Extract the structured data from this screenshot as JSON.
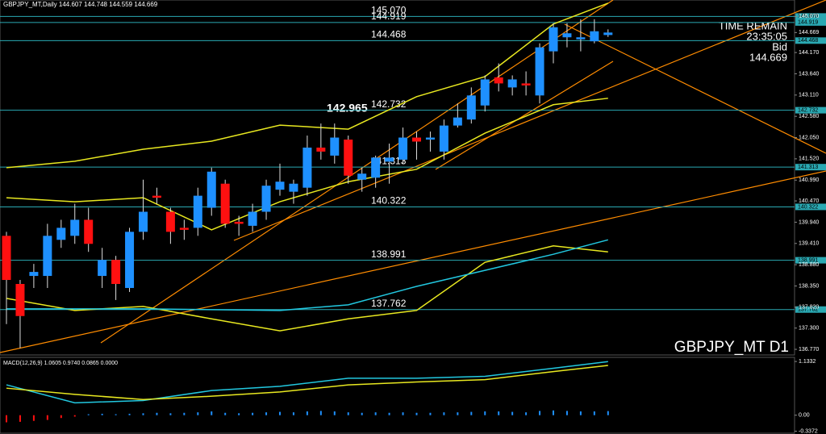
{
  "chart_data": [
    {
      "type": "candlestick",
      "symbol": "GBPJPY_MT,Daily 144.607 144.748 144.559 144.669",
      "timeframe_label": "GBPJPY_MT D1",
      "time_remain_label": "TIME REMAIN",
      "time_remain": "23:35:05",
      "bid_label": "Bid",
      "bid": "144.669",
      "annotation": "142.965",
      "up_color": "#1e90ff",
      "down_color": "#ff1010",
      "wick_color": "#dddddd",
      "level_color": "#2aa9b3",
      "ylim": [
        136.63,
        145.48
      ],
      "yticks": [
        {
          "value": 145.07,
          "label": "145.070"
        },
        {
          "value": 144.669,
          "label": "144.669"
        },
        {
          "value": 144.17,
          "label": "144.170"
        },
        {
          "value": 143.64,
          "label": "143.640"
        },
        {
          "value": 143.11,
          "label": "143.110"
        },
        {
          "value": 142.58,
          "label": "142.580"
        },
        {
          "value": 142.05,
          "label": "142.050"
        },
        {
          "value": 141.52,
          "label": "141.520"
        },
        {
          "value": 140.99,
          "label": "140.990"
        },
        {
          "value": 140.47,
          "label": "140.470"
        },
        {
          "value": 139.94,
          "label": "139.940"
        },
        {
          "value": 139.41,
          "label": "139.410"
        },
        {
          "value": 138.88,
          "label": "138.880"
        },
        {
          "value": 138.35,
          "label": "138.350"
        },
        {
          "value": 137.82,
          "label": "137.820"
        },
        {
          "value": 137.3,
          "label": "137.300"
        },
        {
          "value": 136.77,
          "label": "136.770"
        }
      ],
      "levels": [
        {
          "value": 145.07,
          "label": "145.070"
        },
        {
          "value": 144.919,
          "label": "144.919"
        },
        {
          "value": 144.468,
          "label": "144.468"
        },
        {
          "value": 142.732,
          "label": "142.732"
        },
        {
          "value": 141.313,
          "label": "141.313"
        },
        {
          "value": 140.322,
          "label": "140.322"
        },
        {
          "value": 138.991,
          "label": "138.991"
        },
        {
          "value": 137.762,
          "label": "137.762"
        }
      ],
      "open": [
        139.6,
        138.4,
        138.6,
        138.6,
        139.5,
        139.6,
        140.0,
        138.6,
        139.0,
        138.3,
        139.7,
        140.6,
        140.2,
        139.8,
        139.8,
        140.3,
        140.9,
        139.95,
        139.85,
        140.2,
        140.75,
        140.7,
        140.8,
        141.8,
        141.6,
        142.0,
        141.0,
        141.05,
        141.45,
        141.5,
        142.05,
        142.0,
        141.7,
        142.35,
        142.5,
        142.85,
        143.55,
        143.3,
        143.4,
        143.1,
        144.2,
        144.55,
        144.5,
        144.45,
        144.607
      ],
      "high": [
        139.7,
        138.5,
        138.9,
        139.9,
        140.0,
        140.4,
        140.3,
        139.3,
        139.1,
        139.8,
        141.0,
        140.8,
        140.3,
        140.0,
        140.8,
        141.3,
        141.0,
        140.1,
        140.4,
        141.0,
        141.4,
        141.0,
        142.1,
        142.4,
        142.4,
        142.1,
        141.3,
        141.6,
        141.9,
        142.3,
        142.2,
        142.2,
        142.5,
        142.9,
        143.3,
        143.6,
        143.9,
        143.6,
        143.7,
        144.4,
        144.9,
        144.9,
        145.0,
        145.0,
        144.748
      ],
      "low": [
        137.4,
        136.8,
        138.3,
        138.3,
        139.3,
        139.4,
        139.2,
        138.3,
        138.0,
        138.2,
        139.5,
        140.4,
        139.4,
        139.5,
        139.6,
        140.1,
        139.8,
        139.6,
        139.7,
        140.0,
        140.6,
        140.4,
        140.6,
        141.5,
        141.4,
        140.9,
        140.7,
        140.8,
        140.9,
        141.4,
        141.5,
        141.7,
        141.5,
        142.3,
        142.4,
        142.7,
        143.2,
        143.1,
        143.1,
        142.9,
        143.9,
        144.3,
        144.2,
        144.4,
        144.559
      ],
      "close": [
        138.5,
        137.6,
        138.7,
        139.6,
        139.8,
        140.0,
        139.4,
        139.0,
        138.4,
        139.7,
        140.2,
        140.55,
        139.7,
        139.75,
        140.6,
        141.2,
        139.9,
        139.9,
        140.2,
        140.85,
        140.95,
        140.9,
        141.8,
        141.7,
        142.05,
        141.1,
        141.15,
        141.55,
        141.55,
        142.05,
        141.95,
        142.05,
        142.35,
        142.55,
        143.1,
        143.5,
        143.4,
        143.5,
        143.35,
        144.3,
        144.8,
        144.65,
        144.55,
        144.7,
        144.669
      ],
      "series": [
        {
          "color": "#e8e820",
          "x": [
            0,
            5,
            10,
            15,
            20,
            25,
            30,
            35,
            40,
            44
          ],
          "values": [
            141.3,
            141.46,
            141.76,
            141.96,
            142.36,
            142.26,
            143.07,
            143.57,
            144.88,
            145.4
          ]
        },
        {
          "color": "#e8e820",
          "x": [
            0,
            5,
            10,
            15,
            20,
            25,
            30,
            35,
            40,
            44
          ],
          "values": [
            140.55,
            140.45,
            140.55,
            139.75,
            140.45,
            140.95,
            141.26,
            142.16,
            142.87,
            143.03
          ]
        },
        {
          "color": "#e8e820",
          "x": [
            0,
            5,
            10,
            15,
            20,
            25,
            30,
            35,
            40,
            44
          ],
          "values": [
            138.04,
            137.74,
            137.84,
            137.53,
            137.23,
            137.53,
            137.74,
            138.94,
            139.35,
            139.2
          ]
        },
        {
          "color": "#22c8e0",
          "x": [
            0,
            10,
            20,
            25,
            30,
            35,
            40,
            44
          ],
          "values": [
            137.78,
            137.78,
            137.74,
            137.88,
            138.34,
            138.74,
            139.14,
            139.5
          ]
        }
      ]
    },
    {
      "type": "macd",
      "label": "MACD(12,26,9) 1.0605 0.9740 0.0865 0.0000",
      "ylim": [
        -0.38,
        1.22
      ],
      "yticks": [
        {
          "value": 1.1332,
          "label": "1.1332"
        },
        {
          "value": 0,
          "label": "0.00"
        },
        {
          "value": -0.3372,
          "label": "-0.3372"
        }
      ],
      "hist_up_color": "#1e90ff",
      "hist_down_color": "#ff1010",
      "histogram": [
        -0.15,
        -0.14,
        -0.12,
        -0.1,
        -0.06,
        -0.03,
        0.02,
        0.03,
        0.02,
        0.03,
        0.04,
        0.05,
        0.04,
        0.05,
        0.06,
        0.08,
        0.05,
        0.04,
        0.05,
        0.06,
        0.07,
        0.06,
        0.08,
        0.09,
        0.08,
        0.06,
        0.05,
        0.06,
        0.05,
        0.06,
        0.05,
        0.05,
        0.06,
        0.06,
        0.07,
        0.08,
        0.08,
        0.07,
        0.06,
        0.09,
        0.1,
        0.09,
        0.08,
        0.08,
        0.0865
      ],
      "series": [
        {
          "color": "#22c8e0",
          "x": [
            0,
            5,
            10,
            15,
            20,
            25,
            30,
            35,
            40,
            44
          ],
          "values": [
            0.64,
            0.26,
            0.31,
            0.52,
            0.61,
            0.78,
            0.78,
            0.82,
            0.99,
            1.13
          ]
        },
        {
          "color": "#e8e820",
          "x": [
            0,
            5,
            10,
            15,
            20,
            25,
            30,
            35,
            40,
            44
          ],
          "values": [
            0.57,
            0.44,
            0.33,
            0.4,
            0.49,
            0.64,
            0.7,
            0.75,
            0.92,
            1.05
          ]
        }
      ]
    }
  ]
}
